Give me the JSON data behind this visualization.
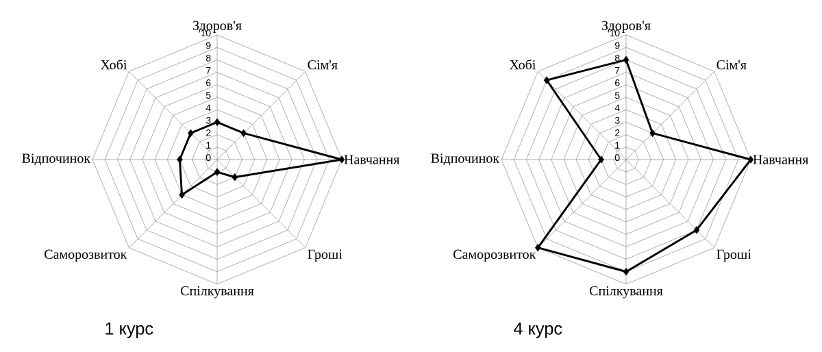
{
  "chart_data": [
    {
      "type": "radar",
      "title": "1 курс",
      "categories": [
        "Здоров'я",
        "Сім'я",
        "Навчання",
        "Гроші",
        "Спілкування",
        "Саморозвиток",
        "Відпочинок",
        "Хобі"
      ],
      "series": [
        {
          "color": "#000000",
          "values": [
            3,
            3,
            10,
            2,
            1,
            4,
            3,
            3
          ]
        }
      ],
      "ylim": [
        0,
        10
      ],
      "yticks": [
        0,
        1,
        2,
        3,
        4,
        5,
        6,
        7,
        8,
        9,
        10
      ],
      "grid": true,
      "marker": "diamond",
      "line_style": "solid"
    },
    {
      "type": "radar",
      "title": "4 курс",
      "categories": [
        "Здоров'я",
        "Сім'я",
        "Навчання",
        "Гроші",
        "Спілкування",
        "Саморозвиток",
        "Відпочинок",
        "Хобі"
      ],
      "series": [
        {
          "color": "#000000",
          "values": [
            8,
            3,
            10,
            8,
            9,
            10,
            2,
            9
          ]
        }
      ],
      "ylim": [
        0,
        10
      ],
      "yticks": [
        0,
        1,
        2,
        3,
        4,
        5,
        6,
        7,
        8,
        9,
        10
      ],
      "grid": true,
      "marker": "diamond",
      "line_style": "solid"
    }
  ]
}
